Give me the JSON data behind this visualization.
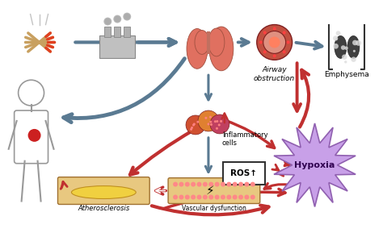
{
  "bg_color": "#ffffff",
  "figsize": [
    4.74,
    2.89
  ],
  "dpi": 100,
  "gray": "#5a7a92",
  "red": "#c03030",
  "lung_color": "#e07060",
  "cell_colors": [
    "#d05030",
    "#e08030",
    "#c04060"
  ],
  "hypoxia_fill": "#c8a0e8",
  "hypoxia_edge": "#9060b0",
  "ros_text": "ROS↑",
  "labels": {
    "airway": "Airway\nobstruction",
    "emphysema": "Emphysema",
    "inflammatory": "Inflammatory\ncells",
    "vascular": "Vascular dysfunction",
    "atherosclerosis": "Atherosclerosis"
  }
}
